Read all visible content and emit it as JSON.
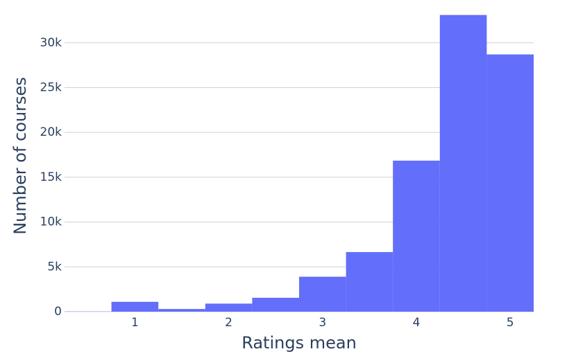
{
  "chart_data": {
    "type": "histogram",
    "xlabel": "Ratings mean",
    "ylabel": "Number of courses",
    "bins": [
      0.25,
      0.75,
      1.25,
      1.75,
      2.25,
      2.75,
      3.25,
      3.75,
      4.25,
      4.75,
      5.25
    ],
    "values": [
      20,
      1100,
      300,
      900,
      1550,
      3900,
      6650,
      16850,
      33100,
      28700
    ],
    "color": "#636efa",
    "xlim": [
      0.25,
      5.25
    ],
    "xticks": [
      1,
      2,
      3,
      4,
      5
    ],
    "ylim": [
      0,
      34000
    ],
    "yticks": [
      0,
      {
        "value": 5000,
        "label": "5k"
      },
      {
        "value": 10000,
        "label": "10k"
      },
      {
        "value": 15000,
        "label": "15k"
      },
      {
        "value": 20000,
        "label": "20k"
      },
      {
        "value": 25000,
        "label": "25k"
      },
      {
        "value": 30000,
        "label": "30k"
      }
    ],
    "grid": true
  }
}
